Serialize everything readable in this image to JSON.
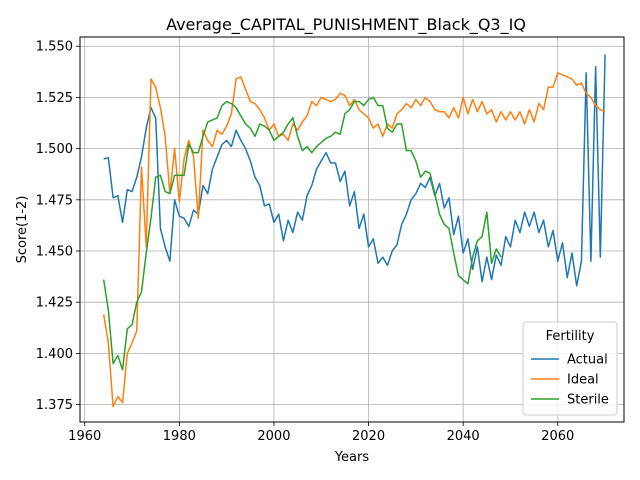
{
  "chart_data": {
    "type": "line",
    "title": "Average_CAPITAL_PUNISHMENT_Black_Q3_IQ",
    "xlabel": "Years",
    "ylabel": "Score(1-2)",
    "xlim": [
      1959,
      2074
    ],
    "ylim": [
      1.3665,
      1.5545
    ],
    "xticks": [
      1960,
      1980,
      2000,
      2020,
      2040,
      2060
    ],
    "yticks": [
      1.375,
      1.4,
      1.425,
      1.45,
      1.475,
      1.5,
      1.525,
      1.55
    ],
    "yticks_labels": [
      "1.375",
      "1.400",
      "1.425",
      "1.450",
      "1.475",
      "1.500",
      "1.525",
      "1.550"
    ],
    "grid": true,
    "legend": {
      "title": "Fertility",
      "placement": "lower-right"
    },
    "series": [
      {
        "name": "Actual",
        "color": "#1f77b4",
        "x": [
          1964,
          1965,
          1966,
          1967,
          1968,
          1969,
          1970,
          1971,
          1972,
          1973,
          1974,
          1975,
          1976,
          1977,
          1978,
          1979,
          1980,
          1981,
          1982,
          1983,
          1984,
          1985,
          1986,
          1987,
          1988,
          1989,
          1990,
          1991,
          1992,
          1993,
          1994,
          1995,
          1996,
          1997,
          1998,
          1999,
          2000,
          2001,
          2002,
          2003,
          2004,
          2005,
          2006,
          2007,
          2008,
          2009,
          2010,
          2011,
          2012,
          2013,
          2014,
          2015,
          2016,
          2017,
          2018,
          2019,
          2020,
          2021,
          2022,
          2023,
          2024,
          2025,
          2026,
          2027,
          2028,
          2029,
          2030,
          2031,
          2032,
          2033,
          2034,
          2035,
          2036,
          2037,
          2038,
          2039,
          2040,
          2041,
          2042,
          2043,
          2044,
          2045,
          2046,
          2047,
          2048,
          2049,
          2050,
          2051,
          2052,
          2053,
          2054,
          2055,
          2056,
          2057,
          2058,
          2059,
          2060,
          2061,
          2062,
          2063,
          2064,
          2065,
          2066,
          2067,
          2068,
          2069,
          2070
        ],
        "values": [
          1.495,
          1.4955,
          1.476,
          1.477,
          1.464,
          1.48,
          1.479,
          1.486,
          1.496,
          1.51,
          1.52,
          1.515,
          1.461,
          1.452,
          1.445,
          1.475,
          1.467,
          1.466,
          1.462,
          1.47,
          1.468,
          1.482,
          1.478,
          1.49,
          1.496,
          1.502,
          1.504,
          1.501,
          1.509,
          1.504,
          1.5,
          1.494,
          1.486,
          1.482,
          1.472,
          1.473,
          1.464,
          1.468,
          1.455,
          1.465,
          1.459,
          1.469,
          1.465,
          1.477,
          1.482,
          1.49,
          1.494,
          1.498,
          1.493,
          1.493,
          1.484,
          1.489,
          1.472,
          1.479,
          1.461,
          1.468,
          1.452,
          1.456,
          1.444,
          1.447,
          1.443,
          1.45,
          1.453,
          1.463,
          1.468,
          1.475,
          1.478,
          1.483,
          1.481,
          1.486,
          1.477,
          1.483,
          1.471,
          1.476,
          1.458,
          1.467,
          1.449,
          1.456,
          1.441,
          1.452,
          1.435,
          1.447,
          1.436,
          1.448,
          1.443,
          1.457,
          1.452,
          1.465,
          1.459,
          1.469,
          1.462,
          1.469,
          1.459,
          1.465,
          1.452,
          1.46,
          1.445,
          1.454,
          1.437,
          1.449,
          1.433,
          1.445,
          1.537,
          1.445,
          1.54,
          1.447,
          1.546
        ]
      },
      {
        "name": "Ideal",
        "color": "#ff7f0e",
        "x": [
          1964,
          1965,
          1966,
          1967,
          1968,
          1969,
          1970,
          1971,
          1972,
          1973,
          1974,
          1975,
          1976,
          1977,
          1978,
          1979,
          1980,
          1981,
          1982,
          1983,
          1984,
          1985,
          1986,
          1987,
          1988,
          1989,
          1990,
          1991,
          1992,
          1993,
          1994,
          1995,
          1996,
          1997,
          1998,
          1999,
          2000,
          2001,
          2002,
          2003,
          2004,
          2005,
          2006,
          2007,
          2008,
          2009,
          2010,
          2011,
          2012,
          2013,
          2014,
          2015,
          2016,
          2017,
          2018,
          2019,
          2020,
          2021,
          2022,
          2023,
          2024,
          2025,
          2026,
          2027,
          2028,
          2029,
          2030,
          2031,
          2032,
          2033,
          2034,
          2035,
          2036,
          2037,
          2038,
          2039,
          2040,
          2041,
          2042,
          2043,
          2044,
          2045,
          2046,
          2047,
          2048,
          2049,
          2050,
          2051,
          2052,
          2053,
          2054,
          2055,
          2056,
          2057,
          2058,
          2059,
          2060,
          2061,
          2062,
          2063,
          2064,
          2065,
          2066,
          2067,
          2068,
          2069,
          2070
        ],
        "values": [
          1.419,
          1.405,
          1.374,
          1.379,
          1.376,
          1.4,
          1.405,
          1.411,
          1.491,
          1.452,
          1.534,
          1.53,
          1.52,
          1.506,
          1.478,
          1.5,
          1.474,
          1.495,
          1.504,
          1.496,
          1.466,
          1.509,
          1.504,
          1.501,
          1.509,
          1.507,
          1.511,
          1.517,
          1.534,
          1.535,
          1.529,
          1.523,
          1.522,
          1.519,
          1.515,
          1.509,
          1.512,
          1.506,
          1.507,
          1.504,
          1.512,
          1.509,
          1.513,
          1.516,
          1.523,
          1.521,
          1.525,
          1.524,
          1.523,
          1.524,
          1.527,
          1.526,
          1.521,
          1.524,
          1.519,
          1.517,
          1.515,
          1.51,
          1.512,
          1.506,
          1.512,
          1.51,
          1.517,
          1.519,
          1.522,
          1.52,
          1.524,
          1.521,
          1.525,
          1.523,
          1.519,
          1.518,
          1.518,
          1.515,
          1.52,
          1.515,
          1.525,
          1.517,
          1.524,
          1.518,
          1.523,
          1.517,
          1.519,
          1.513,
          1.518,
          1.514,
          1.518,
          1.514,
          1.518,
          1.512,
          1.519,
          1.513,
          1.522,
          1.519,
          1.53,
          1.53,
          1.537,
          1.536,
          1.535,
          1.534,
          1.531,
          1.532,
          1.527,
          1.525,
          1.521,
          1.519,
          1.518
        ]
      },
      {
        "name": "Sterile",
        "color": "#2ca02c",
        "x": [
          1964,
          1965,
          1966,
          1967,
          1968,
          1969,
          1970,
          1971,
          1972,
          1973,
          1974,
          1975,
          1976,
          1977,
          1978,
          1979,
          1980,
          1981,
          1982,
          1983,
          1984,
          1985,
          1986,
          1987,
          1988,
          1989,
          1990,
          1991,
          1992,
          1993,
          1994,
          1995,
          1996,
          1997,
          1998,
          1999,
          2000,
          2001,
          2002,
          2003,
          2004,
          2005,
          2006,
          2007,
          2008,
          2009,
          2010,
          2011,
          2012,
          2013,
          2014,
          2015,
          2016,
          2017,
          2018,
          2019,
          2020,
          2021,
          2022,
          2023,
          2024,
          2025,
          2026,
          2027,
          2028,
          2029,
          2030,
          2031,
          2032,
          2033,
          2034,
          2035,
          2036,
          2037,
          2038,
          2039,
          2040,
          2041,
          2042,
          2043,
          2044,
          2045,
          2046,
          2047,
          2048
        ],
        "values": [
          1.436,
          1.421,
          1.395,
          1.399,
          1.392,
          1.412,
          1.414,
          1.425,
          1.43,
          1.449,
          1.466,
          1.486,
          1.487,
          1.479,
          1.478,
          1.487,
          1.487,
          1.487,
          1.502,
          1.498,
          1.498,
          1.506,
          1.513,
          1.514,
          1.515,
          1.521,
          1.523,
          1.522,
          1.52,
          1.516,
          1.512,
          1.51,
          1.506,
          1.512,
          1.511,
          1.509,
          1.504,
          1.506,
          1.508,
          1.512,
          1.515,
          1.506,
          1.499,
          1.501,
          1.498,
          1.501,
          1.503,
          1.505,
          1.506,
          1.508,
          1.507,
          1.517,
          1.519,
          1.523,
          1.523,
          1.521,
          1.524,
          1.525,
          1.521,
          1.521,
          1.51,
          1.508,
          1.512,
          1.512,
          1.499,
          1.499,
          1.494,
          1.486,
          1.489,
          1.488,
          1.478,
          1.468,
          1.463,
          1.461,
          1.449,
          1.438,
          1.436,
          1.434,
          1.447,
          1.455,
          1.457,
          1.469,
          1.444,
          1.451,
          1.447
        ]
      }
    ]
  }
}
